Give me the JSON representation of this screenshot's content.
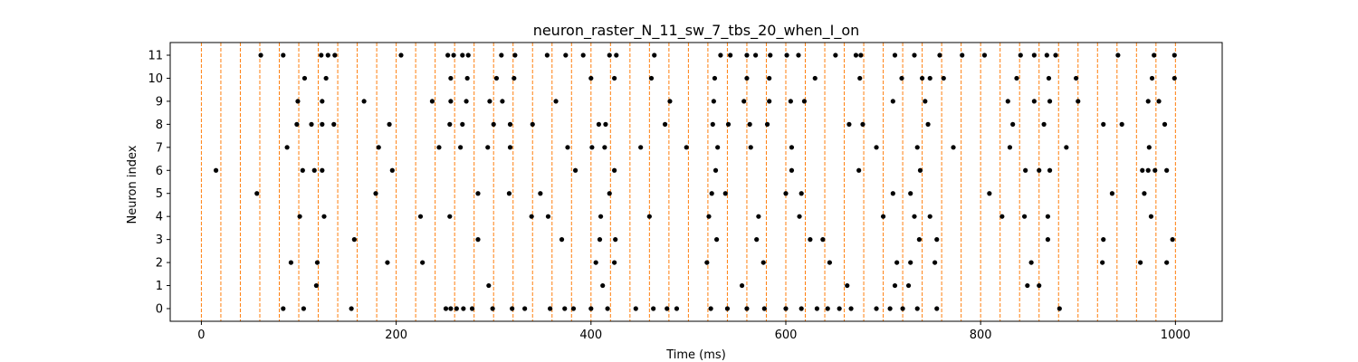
{
  "chart_data": {
    "type": "scatter",
    "title": "neuron_raster_N_11_sw_7_tbs_20_when_I_on",
    "xlabel": "Time (ms)",
    "ylabel": "Neuron index",
    "xlim": [
      -32,
      1048
    ],
    "ylim": [
      -0.55,
      11.55
    ],
    "xticks": [
      0,
      200,
      400,
      600,
      800,
      1000
    ],
    "yticks": [
      0,
      1,
      2,
      3,
      4,
      5,
      6,
      7,
      8,
      9,
      10,
      11
    ],
    "marker_color": "#000000",
    "vline_color": "#ff7f0e",
    "vline_style": "dashed",
    "vlines": [
      0,
      20,
      40,
      60,
      80,
      100,
      120,
      140,
      160,
      180,
      200,
      220,
      240,
      260,
      280,
      300,
      320,
      340,
      360,
      380,
      400,
      420,
      440,
      460,
      480,
      500,
      520,
      540,
      560,
      580,
      600,
      620,
      640,
      660,
      680,
      700,
      720,
      740,
      760,
      780,
      800,
      820,
      840,
      860,
      880,
      900,
      920,
      940,
      960,
      980,
      1000
    ],
    "spikes": [
      {
        "neuron": 0,
        "times": [
          84,
          105,
          154,
          251,
          256,
          262,
          269,
          278,
          299,
          319,
          332,
          358,
          373,
          382,
          400,
          417,
          446,
          464,
          478,
          488,
          523,
          540,
          560,
          578,
          600,
          616,
          632,
          643,
          655,
          667,
          693,
          707,
          720,
          735,
          755,
          881
        ]
      },
      {
        "neuron": 1,
        "times": [
          118,
          295,
          412,
          555,
          663,
          712,
          726,
          848,
          860
        ]
      },
      {
        "neuron": 2,
        "times": [
          92,
          119,
          191,
          227,
          405,
          424,
          519,
          577,
          645,
          714,
          728,
          753,
          852,
          925,
          964,
          991
        ]
      },
      {
        "neuron": 3,
        "times": [
          157,
          284,
          370,
          409,
          425,
          529,
          570,
          625,
          638,
          737,
          755,
          869,
          926,
          997
        ]
      },
      {
        "neuron": 4,
        "times": [
          101,
          126,
          225,
          255,
          339,
          356,
          410,
          460,
          521,
          572,
          614,
          700,
          732,
          748,
          822,
          845,
          869,
          975
        ]
      },
      {
        "neuron": 5,
        "times": [
          57,
          179,
          284,
          316,
          348,
          419,
          524,
          538,
          600,
          616,
          710,
          728,
          809,
          935,
          968
        ]
      },
      {
        "neuron": 6,
        "times": [
          15,
          104,
          116,
          124,
          196,
          384,
          424,
          528,
          606,
          675,
          738,
          846,
          860,
          871,
          966,
          972,
          979,
          991
        ]
      },
      {
        "neuron": 7,
        "times": [
          88,
          182,
          244,
          266,
          294,
          317,
          376,
          401,
          414,
          451,
          498,
          530,
          564,
          606,
          693,
          735,
          772,
          830,
          888,
          973
        ]
      },
      {
        "neuron": 8,
        "times": [
          98,
          113,
          124,
          136,
          193,
          255,
          268,
          300,
          317,
          340,
          408,
          415,
          476,
          525,
          541,
          563,
          581,
          665,
          679,
          746,
          833,
          865,
          926,
          945,
          989
        ]
      },
      {
        "neuron": 9,
        "times": [
          99,
          124,
          167,
          237,
          256,
          272,
          296,
          309,
          364,
          481,
          526,
          557,
          583,
          605,
          619,
          710,
          743,
          828,
          855,
          871,
          900,
          972,
          983
        ]
      },
      {
        "neuron": 10,
        "times": [
          106,
          128,
          256,
          273,
          303,
          321,
          400,
          424,
          462,
          527,
          560,
          583,
          630,
          676,
          719,
          740,
          748,
          762,
          837,
          870,
          898,
          976,
          999
        ]
      },
      {
        "neuron": 11,
        "times": [
          61,
          84,
          123,
          130,
          137,
          205,
          253,
          259,
          268,
          274,
          308,
          322,
          355,
          374,
          392,
          419,
          426,
          465,
          533,
          543,
          560,
          569,
          584,
          601,
          613,
          651,
          672,
          677,
          712,
          732,
          758,
          781,
          804,
          841,
          855,
          868,
          877,
          941,
          978,
          999
        ]
      }
    ]
  }
}
